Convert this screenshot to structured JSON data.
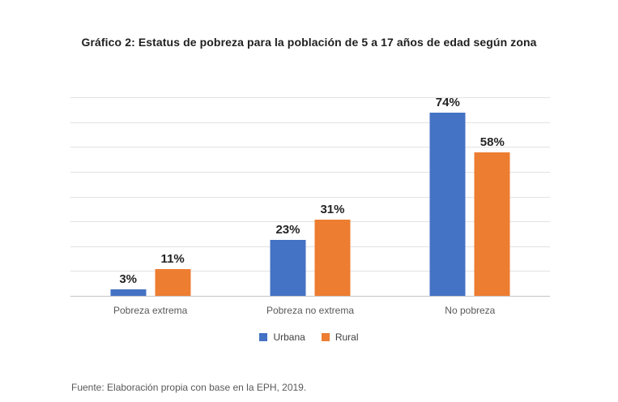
{
  "title": "Gráfico 2: Estatus de pobreza para la población de 5 a 17 años de edad según zona",
  "source_note": "Fuente: Elaboración propia con base en la EPH, 2019.",
  "colors": {
    "urbana": "#4472C4",
    "rural": "#ED7D31",
    "gridline": "#e2e2e2",
    "baseline": "#c3c3c3",
    "value_label": "#242424",
    "category_label": "#595959"
  },
  "chart_data": {
    "type": "bar",
    "title": "Gráfico 2: Estatus de pobreza para la población de 5 a 17 años de edad según zona",
    "categories": [
      "Pobreza extrema",
      "Pobreza no extrema",
      "No pobreza"
    ],
    "series": [
      {
        "name": "Urbana",
        "color": "#4472C4",
        "values": [
          3,
          23,
          74
        ],
        "labels": [
          "3%",
          "23%",
          "74%"
        ]
      },
      {
        "name": "Rural",
        "color": "#ED7D31",
        "values": [
          11,
          31,
          58
        ],
        "labels": [
          "11%",
          "31%",
          "58%"
        ]
      }
    ],
    "xlabel": "",
    "ylabel": "",
    "ylim": [
      0,
      80
    ],
    "grid_step": 10,
    "grid": true,
    "y_axis_labels_visible": false,
    "legend_position": "bottom"
  }
}
